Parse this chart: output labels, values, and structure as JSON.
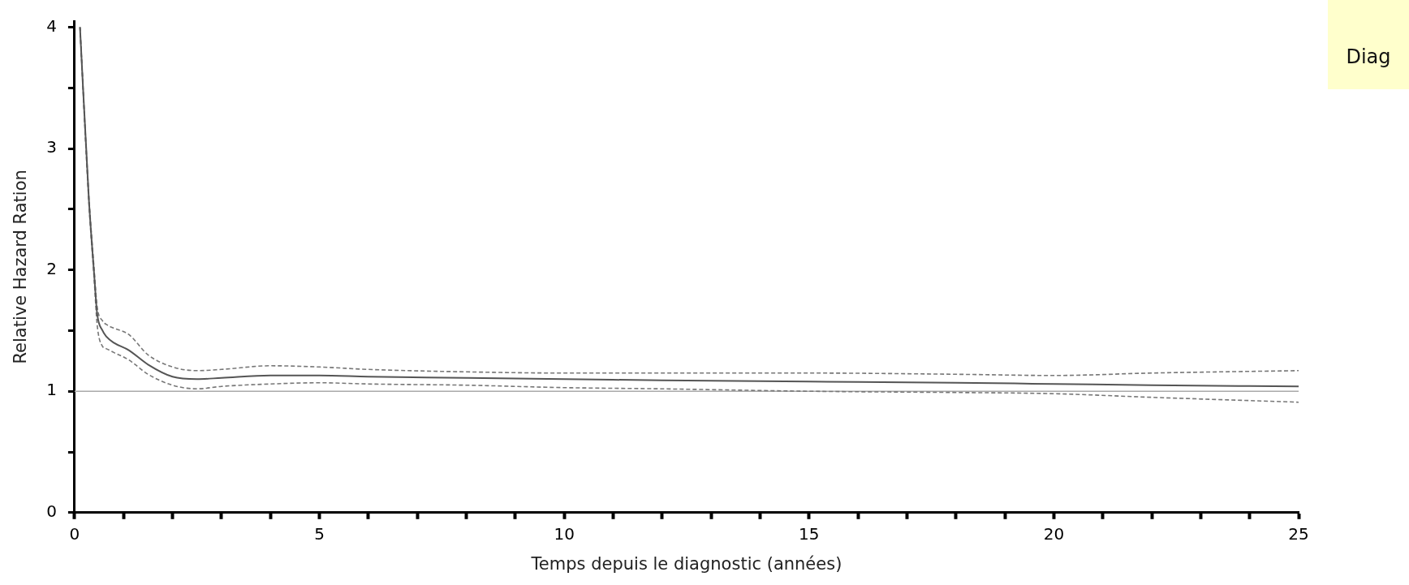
{
  "chart_data": {
    "type": "line",
    "xlabel": "Temps depuis le diagnostic (années)",
    "ylabel": "Relative Hazard Ration",
    "annotations": [
      "Diag"
    ],
    "x": [
      0.11,
      0.29,
      0.4,
      0.46,
      0.57,
      0.65,
      0.8,
      1.1,
      1.5,
      2,
      2.5,
      3,
      4,
      5,
      6,
      8,
      10,
      12,
      15,
      18,
      20,
      22,
      25
    ],
    "series": [
      {
        "color": "#555555",
        "line_style": "solid",
        "values": [
          4.0,
          2.59,
          1.96,
          1.64,
          1.5,
          1.45,
          1.4,
          1.34,
          1.22,
          1.12,
          1.1,
          1.11,
          1.13,
          1.13,
          1.12,
          1.11,
          1.1,
          1.09,
          1.08,
          1.07,
          1.06,
          1.05,
          1.04
        ]
      },
      {
        "color": "#777777",
        "line_style": "dashed",
        "values": [
          4.0,
          2.62,
          2.0,
          1.7,
          1.58,
          1.55,
          1.52,
          1.47,
          1.3,
          1.2,
          1.17,
          1.18,
          1.21,
          1.2,
          1.18,
          1.16,
          1.15,
          1.15,
          1.15,
          1.14,
          1.13,
          1.15,
          1.17
        ]
      },
      {
        "color": "#777777",
        "line_style": "dashed",
        "values": [
          4.0,
          2.56,
          1.92,
          1.55,
          1.37,
          1.35,
          1.32,
          1.26,
          1.14,
          1.05,
          1.02,
          1.04,
          1.06,
          1.07,
          1.06,
          1.05,
          1.03,
          1.02,
          1.0,
          0.99,
          0.98,
          0.95,
          0.91
        ]
      }
    ],
    "ref_lines": [
      {
        "axis": "y",
        "value": 1,
        "color": "#aaaaaa"
      }
    ],
    "xlim": [
      0,
      25
    ],
    "xticks": [
      0,
      {
        "value": 1,
        "label": null
      },
      {
        "value": 2,
        "label": null
      },
      {
        "value": 3,
        "label": null
      },
      {
        "value": 4,
        "label": null
      },
      5,
      {
        "value": 6,
        "label": null
      },
      {
        "value": 7,
        "label": null
      },
      {
        "value": 8,
        "label": null
      },
      {
        "value": 9,
        "label": null
      },
      10,
      {
        "value": 11,
        "label": null
      },
      {
        "value": 12,
        "label": null
      },
      {
        "value": 13,
        "label": null
      },
      {
        "value": 14,
        "label": null
      },
      15,
      {
        "value": 16,
        "label": null
      },
      {
        "value": 17,
        "label": null
      },
      {
        "value": 18,
        "label": null
      },
      {
        "value": 19,
        "label": null
      },
      20,
      {
        "value": 21,
        "label": null
      },
      {
        "value": 22,
        "label": null
      },
      {
        "value": 23,
        "label": null
      },
      {
        "value": 24,
        "label": null
      },
      25
    ],
    "ylim": [
      0,
      4.05
    ],
    "yticks": [
      0,
      {
        "value": 0.5,
        "label": null
      },
      1,
      {
        "value": 1.5,
        "label": null
      },
      2,
      {
        "value": 2.5,
        "label": null
      },
      3,
      {
        "value": 3.5,
        "label": null
      },
      4
    ],
    "grid": false,
    "legend": false,
    "marker": "none"
  }
}
